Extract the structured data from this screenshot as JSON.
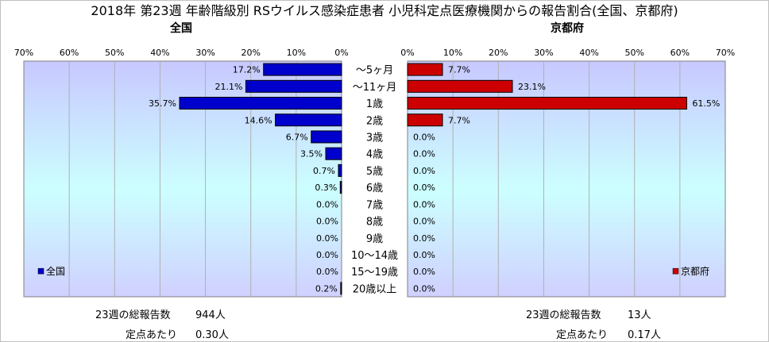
{
  "chart_data": {
    "type": "bar",
    "title": "2018年 第23週 年齢階級別 RSウイルス感染症患者 小児科定点医療機関からの報告割合(全国、京都府)",
    "categories": [
      "～5ヶ月",
      "～11ヶ月",
      "1歳",
      "2歳",
      "3歳",
      "4歳",
      "5歳",
      "6歳",
      "7歳",
      "8歳",
      "9歳",
      "10～14歳",
      "15～19歳",
      "20歳以上"
    ],
    "xlim": [
      0,
      70
    ],
    "tick_labels": [
      "0%",
      "10%",
      "20%",
      "30%",
      "40%",
      "50%",
      "60%",
      "70%"
    ],
    "grid": true,
    "series": [
      {
        "name": "全国",
        "panel_title": "全国",
        "color": "#0000cc",
        "values": [
          17.2,
          21.1,
          35.7,
          14.6,
          6.7,
          3.5,
          0.7,
          0.3,
          0.0,
          0.0,
          0.0,
          0.0,
          0.0,
          0.2
        ],
        "value_labels": [
          "17.2%",
          "21.1%",
          "35.7%",
          "14.6%",
          "6.7%",
          "3.5%",
          "0.7%",
          "0.3%",
          "0.0%",
          "0.0%",
          "0.0%",
          "0.0%",
          "0.0%",
          "0.2%"
        ]
      },
      {
        "name": "京都府",
        "panel_title": "京都府",
        "color": "#cc0000",
        "values": [
          7.7,
          23.1,
          61.5,
          7.7,
          0.0,
          0.0,
          0.0,
          0.0,
          0.0,
          0.0,
          0.0,
          0.0,
          0.0,
          0.0
        ],
        "value_labels": [
          "7.7%",
          "23.1%",
          "61.5%",
          "7.7%",
          "0.0%",
          "0.0%",
          "0.0%",
          "0.0%",
          "0.0%",
          "0.0%",
          "0.0%",
          "0.0%",
          "0.0%",
          "0.0%"
        ]
      }
    ]
  },
  "footer": {
    "national": {
      "total_label": "23週の総報告数",
      "total_value": "944人",
      "per_label": "定点あたり",
      "per_value": "0.30人"
    },
    "kyoto": {
      "total_label": "23週の総報告数",
      "total_value": "13人",
      "per_label": "定点あたり",
      "per_value": "0.17人"
    }
  },
  "colors": {
    "plot_top": "#c8c8ff",
    "plot_mid": "#ccffff",
    "plot_bottom": "#d0d0ff"
  }
}
